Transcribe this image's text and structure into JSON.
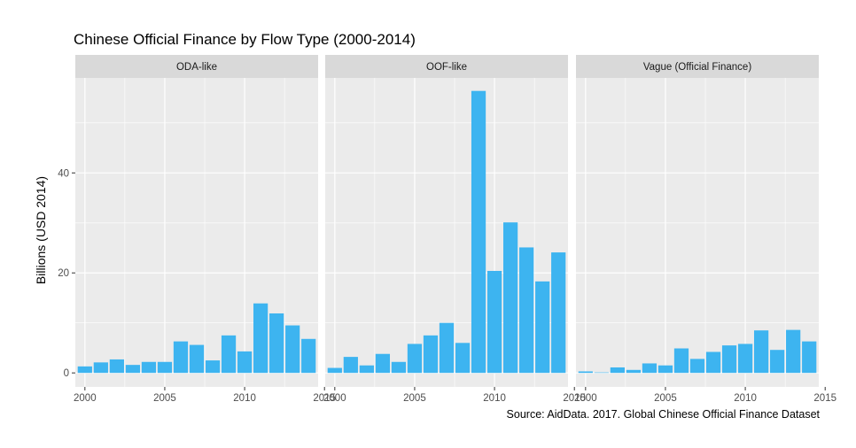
{
  "chart_data": {
    "type": "bar",
    "title": "Chinese Official Finance by Flow Type (2000-2014)",
    "ylabel": "Billions (USD 2014)",
    "xlabel": "",
    "caption": "Source: AidData. 2017. Global Chinese Official Finance Dataset",
    "x_ticks": [
      2000,
      2005,
      2010,
      2015
    ],
    "y_ticks": [
      0,
      20,
      40
    ],
    "xlim": [
      1999.4,
      2014.6
    ],
    "ylim": [
      -2.8,
      59
    ],
    "bar_color": "#3DB4F0",
    "panel_bg": "#EBEBEB",
    "strip_bg": "#D9D9D9",
    "grid_color": "#FFFFFF",
    "years": [
      2000,
      2001,
      2002,
      2003,
      2004,
      2005,
      2006,
      2007,
      2008,
      2009,
      2010,
      2011,
      2012,
      2013,
      2014
    ],
    "facets": [
      {
        "name": "ODA-like",
        "values": [
          1.3,
          2.1,
          2.7,
          1.6,
          2.2,
          2.2,
          6.3,
          5.6,
          2.5,
          7.5,
          4.3,
          13.9,
          11.9,
          9.5,
          6.8
        ]
      },
      {
        "name": "OOF-like",
        "values": [
          1.0,
          3.2,
          1.5,
          3.8,
          2.2,
          5.8,
          7.5,
          10.0,
          6.0,
          56.4,
          20.4,
          30.1,
          25.1,
          18.3,
          24.1
        ]
      },
      {
        "name": "Vague (Official Finance)",
        "values": [
          0.3,
          0.1,
          1.1,
          0.6,
          1.9,
          1.5,
          4.9,
          2.8,
          4.2,
          5.5,
          5.8,
          8.5,
          4.6,
          8.6,
          6.3
        ]
      }
    ]
  }
}
